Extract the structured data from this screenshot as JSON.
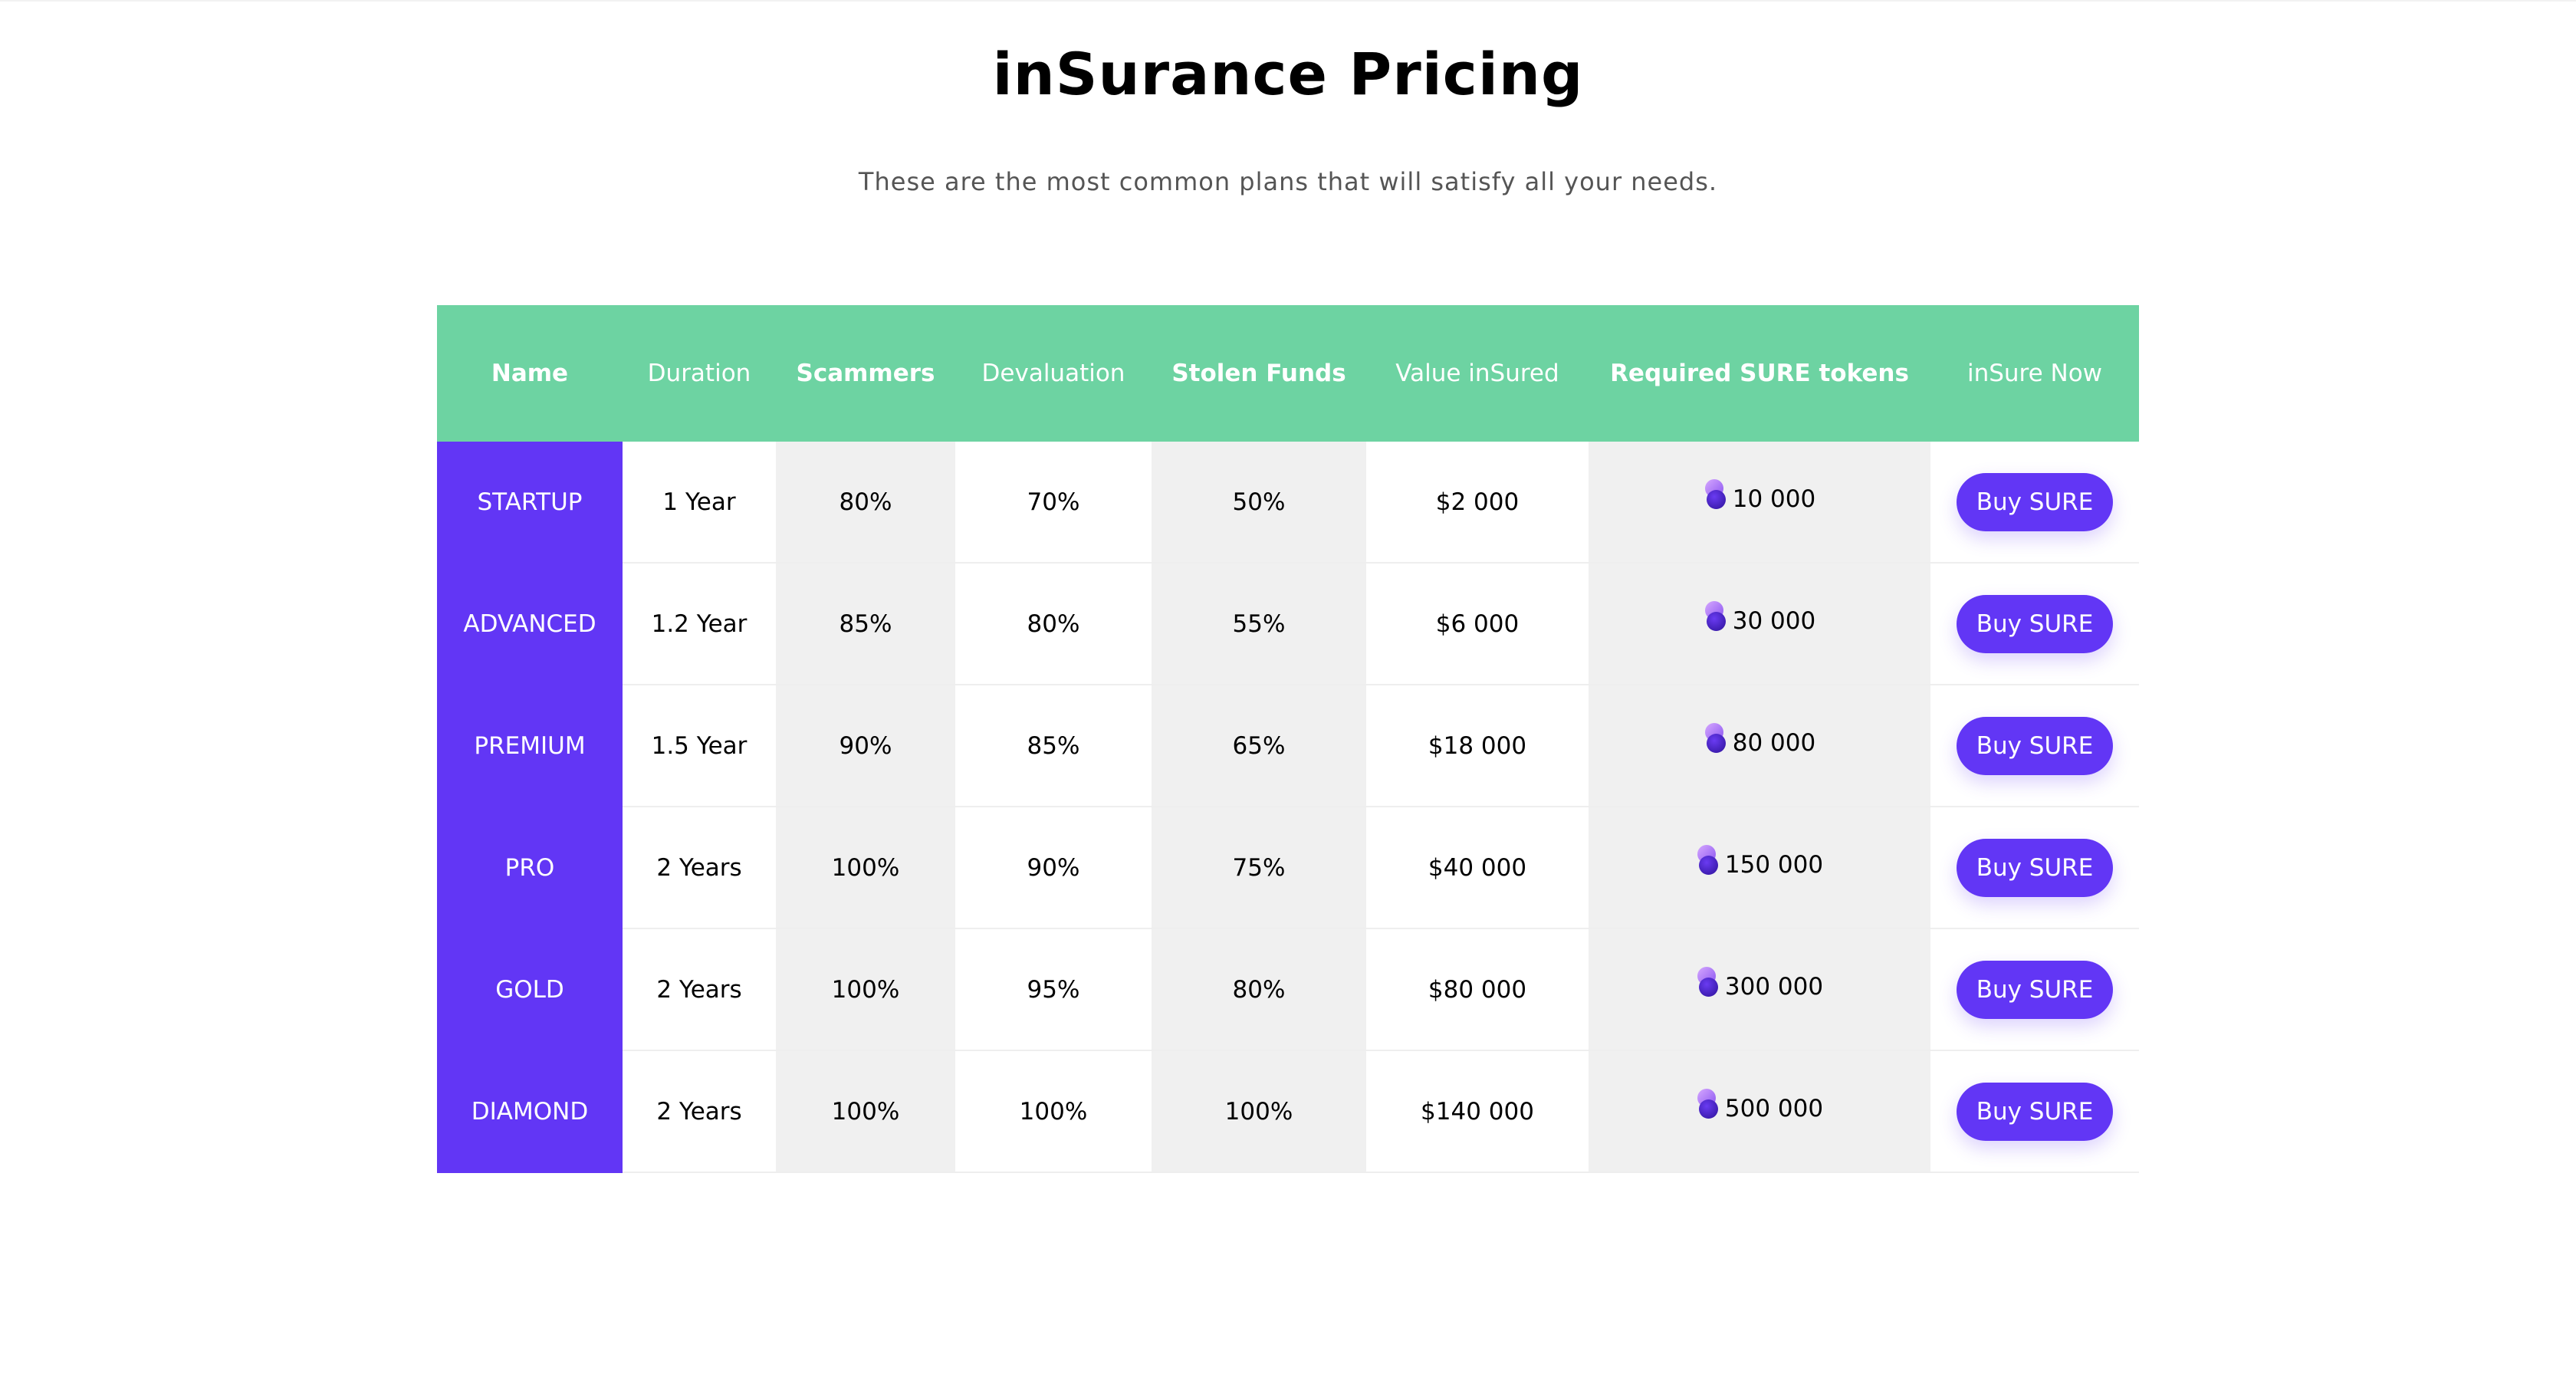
{
  "header": {
    "title": "inSurance Pricing",
    "subtitle": "These are the most common plans that will satisfy all your needs."
  },
  "table": {
    "columns": [
      {
        "label": "Name",
        "bold": true
      },
      {
        "label": "Duration",
        "bold": false
      },
      {
        "label": "Scammers",
        "bold": true
      },
      {
        "label": "Devaluation",
        "bold": false
      },
      {
        "label": "Stolen Funds",
        "bold": true
      },
      {
        "label": "Value inSured",
        "bold": false
      },
      {
        "label": "Required SURE tokens",
        "bold": true
      },
      {
        "label": "inSure Now",
        "bold": false
      }
    ],
    "rows": [
      {
        "name": "STARTUP",
        "duration": "1 Year",
        "scammers": "80%",
        "devaluation": "70%",
        "stolen_funds": "50%",
        "value_insured": "$2 000",
        "required_tokens": "10 000",
        "action": "Buy SURE"
      },
      {
        "name": "ADVANCED",
        "duration": "1.2 Year",
        "scammers": "85%",
        "devaluation": "80%",
        "stolen_funds": "55%",
        "value_insured": "$6 000",
        "required_tokens": "30 000",
        "action": "Buy SURE"
      },
      {
        "name": "PREMIUM",
        "duration": "1.5 Year",
        "scammers": "90%",
        "devaluation": "85%",
        "stolen_funds": "65%",
        "value_insured": "$18 000",
        "required_tokens": "80 000",
        "action": "Buy SURE"
      },
      {
        "name": "PRO",
        "duration": "2 Years",
        "scammers": "100%",
        "devaluation": "90%",
        "stolen_funds": "75%",
        "value_insured": "$40 000",
        "required_tokens": "150 000",
        "action": "Buy SURE"
      },
      {
        "name": "GOLD",
        "duration": "2 Years",
        "scammers": "100%",
        "devaluation": "95%",
        "stolen_funds": "80%",
        "value_insured": "$80 000",
        "required_tokens": "300 000",
        "action": "Buy SURE"
      },
      {
        "name": "DIAMOND",
        "duration": "2 Years",
        "scammers": "100%",
        "devaluation": "100%",
        "stolen_funds": "100%",
        "value_insured": "$140 000",
        "required_tokens": "500 000",
        "action": "Buy SURE"
      }
    ]
  },
  "colors": {
    "header_bg": "#6dd3a2",
    "accent_purple": "#6236f5",
    "shaded_column": "#f0f0f0"
  },
  "icons": {
    "token": "sure-token-icon"
  }
}
